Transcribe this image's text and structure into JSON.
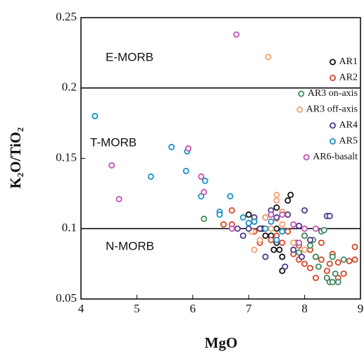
{
  "chart_data": {
    "type": "scatter",
    "xlabel": "MgO",
    "ylabel": "K₂O/TiO₂",
    "xlim": [
      4,
      9
    ],
    "ylim": [
      0.05,
      0.25
    ],
    "xticks": [
      4,
      5,
      6,
      7,
      8,
      9
    ],
    "yticks": [
      0.05,
      0.1,
      0.15,
      0.2,
      0.25
    ],
    "hlines": [
      0.2,
      0.1
    ],
    "annotations": [
      "E-MORB",
      "T-MORB",
      "N-MORB"
    ],
    "legend": "upper right",
    "series": [
      {
        "name": "AR1",
        "color": "#111111",
        "x": [
          7.0,
          7.1,
          7.2,
          7.3,
          7.4,
          7.5,
          7.5,
          7.55,
          7.6,
          7.6,
          7.7,
          7.75,
          7.3,
          7.45,
          7.25,
          7.5
        ],
        "values": [
          0.11,
          0.105,
          0.1,
          0.108,
          0.095,
          0.1,
          0.09,
          0.085,
          0.08,
          0.07,
          0.12,
          0.124,
          0.095,
          0.085,
          0.1,
          0.115
        ]
      },
      {
        "name": "AR2",
        "color": "#d6452a",
        "x": [
          6.55,
          6.7,
          6.7,
          7.1,
          7.2,
          7.4,
          7.5,
          7.6,
          7.8,
          7.9,
          8.0,
          8.1,
          8.2,
          8.3,
          8.4,
          8.5,
          8.6,
          8.7,
          8.8,
          8.9,
          8.9,
          8.1,
          8.2,
          7.9,
          7.7,
          8.3,
          8.6,
          8.0,
          7.3,
          8.45
        ],
        "values": [
          0.103,
          0.113,
          0.103,
          0.098,
          0.09,
          0.092,
          0.095,
          0.09,
          0.082,
          0.078,
          0.075,
          0.072,
          0.065,
          0.078,
          0.07,
          0.082,
          0.076,
          0.068,
          0.077,
          0.087,
          0.078,
          0.085,
          0.08,
          0.088,
          0.098,
          0.09,
          0.065,
          0.095,
          0.1,
          0.075
        ]
      },
      {
        "name": "AR3 on-axis",
        "color": "#3f8a5f",
        "x": [
          6.2,
          7.85,
          7.9,
          8.0,
          8.1,
          8.2,
          8.25,
          8.3,
          8.35,
          8.4,
          8.45,
          8.5,
          8.55,
          8.6,
          8.5,
          8.7,
          8.15
        ],
        "values": [
          0.107,
          0.09,
          0.083,
          0.095,
          0.088,
          0.08,
          0.073,
          0.098,
          0.099,
          0.065,
          0.062,
          0.062,
          0.068,
          0.062,
          0.08,
          0.078,
          0.092
        ]
      },
      {
        "name": "AR3 off-axis",
        "color": "#f3a06e",
        "x": [
          7.35,
          7.5,
          7.5,
          7.6,
          7.7,
          7.05,
          7.1,
          7.4,
          7.6,
          7.8,
          8.0,
          7.3,
          7.2,
          7.5
        ],
        "values": [
          0.222,
          0.124,
          0.12,
          0.112,
          0.11,
          0.098,
          0.085,
          0.1,
          0.103,
          0.09,
          0.085,
          0.108,
          0.092,
          0.107
        ]
      },
      {
        "name": "AR4",
        "color": "#4a3a8c",
        "x": [
          6.8,
          6.9,
          7.0,
          7.1,
          7.2,
          7.3,
          7.4,
          7.5,
          7.6,
          7.7,
          7.8,
          7.9,
          8.0,
          8.1,
          8.4,
          8.45,
          7.65,
          7.95
        ],
        "values": [
          0.1,
          0.095,
          0.1,
          0.108,
          0.1,
          0.08,
          0.113,
          0.108,
          0.098,
          0.11,
          0.085,
          0.102,
          0.113,
          0.092,
          0.109,
          0.109,
          0.073,
          0.08
        ]
      },
      {
        "name": "AR5",
        "color": "#1a90c8",
        "x": [
          4.25,
          5.25,
          5.62,
          5.88,
          5.9,
          6.15,
          6.22,
          6.48,
          6.48,
          6.67,
          6.9,
          7.0,
          7.1,
          7.3,
          7.4,
          7.5,
          7.6
        ],
        "values": [
          0.18,
          0.137,
          0.158,
          0.141,
          0.155,
          0.123,
          0.134,
          0.112,
          0.11,
          0.123,
          0.108,
          0.104,
          0.105,
          0.1,
          0.105,
          0.092,
          0.098
        ]
      },
      {
        "name": "AR6-basalt",
        "color": "#c64fb2",
        "x": [
          6.78,
          4.55,
          4.68,
          5.92,
          6.15,
          6.2,
          6.7,
          7.4,
          7.6,
          7.8,
          7.9,
          8.2,
          8.0
        ],
        "values": [
          0.238,
          0.145,
          0.121,
          0.157,
          0.137,
          0.126,
          0.1,
          0.11,
          0.11,
          0.103,
          0.09,
          0.1,
          0.1
        ]
      }
    ]
  }
}
